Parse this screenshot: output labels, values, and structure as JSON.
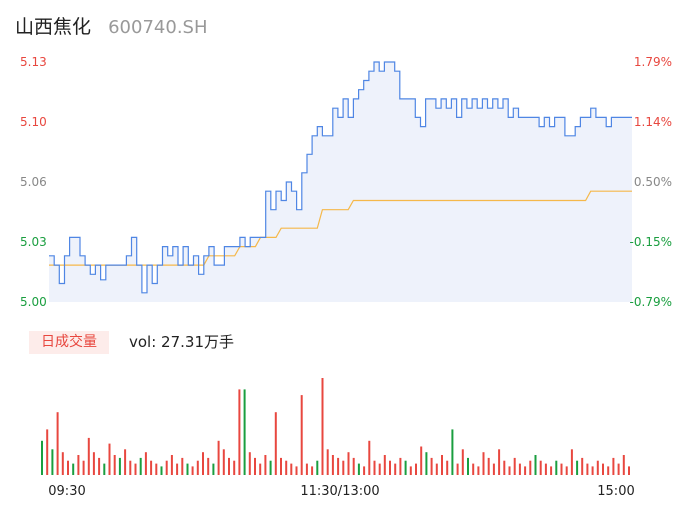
{
  "header": {
    "name": "山西焦化",
    "code": "600740.SH"
  },
  "volume": {
    "tag": "日成交量",
    "label": "vol: 27.31万手"
  },
  "colors": {
    "up": "#e8473f",
    "down": "#1a9e3f",
    "flat": "#888888",
    "price": "#4f86e4",
    "avg": "#f5b84a"
  },
  "chart_data": {
    "type": "line",
    "ylim": [
      5.0,
      5.13
    ],
    "y_ticks": [
      {
        "value": "5.13",
        "pct": "1.79%",
        "dir": "up"
      },
      {
        "value": "5.10",
        "pct": "1.14%",
        "dir": "up"
      },
      {
        "value": "5.06",
        "pct": "0.50%",
        "dir": "flat"
      },
      {
        "value": "5.03",
        "pct": "-0.15%",
        "dir": "down"
      },
      {
        "value": "5.00",
        "pct": "-0.79%",
        "dir": "down"
      }
    ],
    "x_ticks": [
      "09:30",
      "11:30/13:00",
      "15:00"
    ],
    "price_range": [
      5.0,
      5.13
    ],
    "series": [
      {
        "role": "price",
        "points": [
          [
            0,
            5.025
          ],
          [
            1,
            5.02
          ],
          [
            2,
            5.01
          ],
          [
            3,
            5.025
          ],
          [
            4,
            5.035
          ],
          [
            5,
            5.035
          ],
          [
            6,
            5.025
          ],
          [
            7,
            5.02
          ],
          [
            8,
            5.015
          ],
          [
            9,
            5.02
          ],
          [
            10,
            5.012
          ],
          [
            11,
            5.02
          ],
          [
            12,
            5.02
          ],
          [
            13,
            5.02
          ],
          [
            14,
            5.02
          ],
          [
            15,
            5.025
          ],
          [
            16,
            5.035
          ],
          [
            17,
            5.02
          ],
          [
            18,
            5.005
          ],
          [
            19,
            5.02
          ],
          [
            20,
            5.01
          ],
          [
            21,
            5.02
          ],
          [
            22,
            5.03
          ],
          [
            23,
            5.025
          ],
          [
            24,
            5.03
          ],
          [
            25,
            5.02
          ],
          [
            26,
            5.03
          ],
          [
            27,
            5.02
          ],
          [
            28,
            5.025
          ],
          [
            29,
            5.015
          ],
          [
            30,
            5.025
          ],
          [
            31,
            5.03
          ],
          [
            32,
            5.02
          ],
          [
            33,
            5.02
          ],
          [
            34,
            5.03
          ],
          [
            35,
            5.03
          ],
          [
            36,
            5.03
          ],
          [
            37,
            5.035
          ],
          [
            38,
            5.03
          ],
          [
            39,
            5.035
          ],
          [
            40,
            5.035
          ],
          [
            41,
            5.035
          ],
          [
            42,
            5.06
          ],
          [
            43,
            5.05
          ],
          [
            44,
            5.06
          ],
          [
            45,
            5.055
          ],
          [
            46,
            5.065
          ],
          [
            47,
            5.06
          ],
          [
            48,
            5.05
          ],
          [
            49,
            5.07
          ],
          [
            50,
            5.08
          ],
          [
            51,
            5.09
          ],
          [
            52,
            5.095
          ],
          [
            53,
            5.09
          ],
          [
            54,
            5.09
          ],
          [
            55,
            5.105
          ],
          [
            56,
            5.1
          ],
          [
            57,
            5.11
          ],
          [
            58,
            5.1
          ],
          [
            59,
            5.11
          ],
          [
            60,
            5.115
          ],
          [
            61,
            5.12
          ],
          [
            62,
            5.125
          ],
          [
            63,
            5.13
          ],
          [
            64,
            5.125
          ],
          [
            65,
            5.13
          ],
          [
            66,
            5.13
          ],
          [
            67,
            5.125
          ],
          [
            68,
            5.11
          ],
          [
            69,
            5.11
          ],
          [
            70,
            5.11
          ],
          [
            71,
            5.1
          ],
          [
            72,
            5.095
          ],
          [
            73,
            5.11
          ],
          [
            74,
            5.11
          ],
          [
            75,
            5.105
          ],
          [
            76,
            5.11
          ],
          [
            77,
            5.105
          ],
          [
            78,
            5.11
          ],
          [
            79,
            5.1
          ],
          [
            80,
            5.11
          ],
          [
            81,
            5.105
          ],
          [
            82,
            5.11
          ],
          [
            83,
            5.105
          ],
          [
            84,
            5.11
          ],
          [
            85,
            5.105
          ],
          [
            86,
            5.11
          ],
          [
            87,
            5.105
          ],
          [
            88,
            5.11
          ],
          [
            89,
            5.1
          ],
          [
            90,
            5.105
          ],
          [
            91,
            5.1
          ],
          [
            92,
            5.1
          ],
          [
            93,
            5.1
          ],
          [
            94,
            5.1
          ],
          [
            95,
            5.095
          ],
          [
            96,
            5.1
          ],
          [
            97,
            5.095
          ],
          [
            98,
            5.1
          ],
          [
            99,
            5.1
          ],
          [
            100,
            5.09
          ],
          [
            101,
            5.09
          ],
          [
            102,
            5.095
          ],
          [
            103,
            5.1
          ],
          [
            104,
            5.1
          ],
          [
            105,
            5.105
          ],
          [
            106,
            5.1
          ],
          [
            107,
            5.1
          ],
          [
            108,
            5.095
          ],
          [
            109,
            5.1
          ],
          [
            110,
            5.1
          ],
          [
            111,
            5.1
          ],
          [
            112,
            5.1
          ],
          [
            113,
            5.1
          ]
        ]
      },
      {
        "role": "average",
        "points": [
          [
            0,
            5.02
          ],
          [
            30,
            5.02
          ],
          [
            31,
            5.025
          ],
          [
            36,
            5.025
          ],
          [
            37,
            5.03
          ],
          [
            40,
            5.03
          ],
          [
            41,
            5.035
          ],
          [
            44,
            5.035
          ],
          [
            45,
            5.04
          ],
          [
            52,
            5.04
          ],
          [
            53,
            5.05
          ],
          [
            58,
            5.05
          ],
          [
            59,
            5.055
          ],
          [
            104,
            5.055
          ],
          [
            105,
            5.06
          ],
          [
            113,
            5.06
          ]
        ]
      }
    ],
    "volume_bars": [
      [
        0,
        12,
        "down"
      ],
      [
        1,
        16,
        "up"
      ],
      [
        2,
        9,
        "down"
      ],
      [
        3,
        22,
        "up"
      ],
      [
        4,
        8,
        "up"
      ],
      [
        5,
        5,
        "up"
      ],
      [
        6,
        4,
        "down"
      ],
      [
        7,
        7,
        "up"
      ],
      [
        8,
        5,
        "up"
      ],
      [
        9,
        13,
        "up"
      ],
      [
        10,
        8,
        "up"
      ],
      [
        11,
        6,
        "up"
      ],
      [
        12,
        4,
        "down"
      ],
      [
        13,
        11,
        "up"
      ],
      [
        14,
        7,
        "up"
      ],
      [
        15,
        6,
        "down"
      ],
      [
        16,
        9,
        "up"
      ],
      [
        17,
        5,
        "up"
      ],
      [
        18,
        4,
        "up"
      ],
      [
        19,
        6,
        "down"
      ],
      [
        20,
        8,
        "up"
      ],
      [
        21,
        5,
        "up"
      ],
      [
        22,
        4,
        "up"
      ],
      [
        23,
        3,
        "down"
      ],
      [
        24,
        5,
        "up"
      ],
      [
        25,
        7,
        "up"
      ],
      [
        26,
        4,
        "up"
      ],
      [
        27,
        6,
        "up"
      ],
      [
        28,
        4,
        "down"
      ],
      [
        29,
        3,
        "up"
      ],
      [
        30,
        5,
        "up"
      ],
      [
        31,
        8,
        "up"
      ],
      [
        32,
        6,
        "up"
      ],
      [
        33,
        4,
        "down"
      ],
      [
        34,
        12,
        "up"
      ],
      [
        35,
        9,
        "up"
      ],
      [
        36,
        6,
        "up"
      ],
      [
        37,
        5,
        "up"
      ],
      [
        38,
        30,
        "up"
      ],
      [
        39,
        30,
        "down"
      ],
      [
        40,
        8,
        "up"
      ],
      [
        41,
        6,
        "up"
      ],
      [
        42,
        4,
        "up"
      ],
      [
        43,
        7,
        "up"
      ],
      [
        44,
        5,
        "down"
      ],
      [
        45,
        22,
        "up"
      ],
      [
        46,
        6,
        "up"
      ],
      [
        47,
        5,
        "up"
      ],
      [
        48,
        4,
        "up"
      ],
      [
        49,
        3,
        "up"
      ],
      [
        50,
        28,
        "up"
      ],
      [
        51,
        4,
        "up"
      ],
      [
        52,
        3,
        "up"
      ],
      [
        53,
        5,
        "down"
      ],
      [
        54,
        34,
        "up"
      ],
      [
        55,
        9,
        "up"
      ],
      [
        56,
        7,
        "up"
      ],
      [
        57,
        6,
        "up"
      ],
      [
        58,
        5,
        "up"
      ],
      [
        59,
        8,
        "up"
      ],
      [
        60,
        6,
        "up"
      ],
      [
        61,
        4,
        "down"
      ],
      [
        62,
        3,
        "up"
      ],
      [
        63,
        12,
        "up"
      ],
      [
        64,
        5,
        "up"
      ],
      [
        65,
        4,
        "up"
      ],
      [
        66,
        7,
        "up"
      ],
      [
        67,
        5,
        "up"
      ],
      [
        68,
        4,
        "up"
      ],
      [
        69,
        6,
        "up"
      ],
      [
        70,
        5,
        "down"
      ],
      [
        71,
        3,
        "up"
      ],
      [
        72,
        4,
        "up"
      ],
      [
        73,
        10,
        "up"
      ],
      [
        74,
        8,
        "down"
      ],
      [
        75,
        6,
        "up"
      ],
      [
        76,
        4,
        "up"
      ],
      [
        77,
        7,
        "up"
      ],
      [
        78,
        5,
        "up"
      ],
      [
        79,
        16,
        "down"
      ],
      [
        80,
        4,
        "up"
      ],
      [
        81,
        9,
        "up"
      ],
      [
        82,
        6,
        "down"
      ],
      [
        83,
        4,
        "up"
      ],
      [
        84,
        3,
        "up"
      ],
      [
        85,
        8,
        "up"
      ],
      [
        86,
        6,
        "up"
      ],
      [
        87,
        4,
        "up"
      ],
      [
        88,
        9,
        "up"
      ],
      [
        89,
        5,
        "up"
      ],
      [
        90,
        3,
        "up"
      ],
      [
        91,
        6,
        "up"
      ],
      [
        92,
        4,
        "up"
      ],
      [
        93,
        3,
        "up"
      ],
      [
        94,
        5,
        "up"
      ],
      [
        95,
        7,
        "down"
      ],
      [
        96,
        5,
        "up"
      ],
      [
        97,
        4,
        "up"
      ],
      [
        98,
        3,
        "up"
      ],
      [
        99,
        5,
        "down"
      ],
      [
        100,
        4,
        "up"
      ],
      [
        101,
        3,
        "up"
      ],
      [
        102,
        9,
        "up"
      ],
      [
        103,
        5,
        "down"
      ],
      [
        104,
        6,
        "up"
      ],
      [
        105,
        4,
        "up"
      ],
      [
        106,
        3,
        "up"
      ],
      [
        107,
        5,
        "up"
      ],
      [
        108,
        4,
        "up"
      ],
      [
        109,
        3,
        "up"
      ],
      [
        110,
        6,
        "up"
      ],
      [
        111,
        4,
        "up"
      ],
      [
        112,
        7,
        "up"
      ],
      [
        113,
        3,
        "up"
      ]
    ],
    "x_points": 114
  }
}
